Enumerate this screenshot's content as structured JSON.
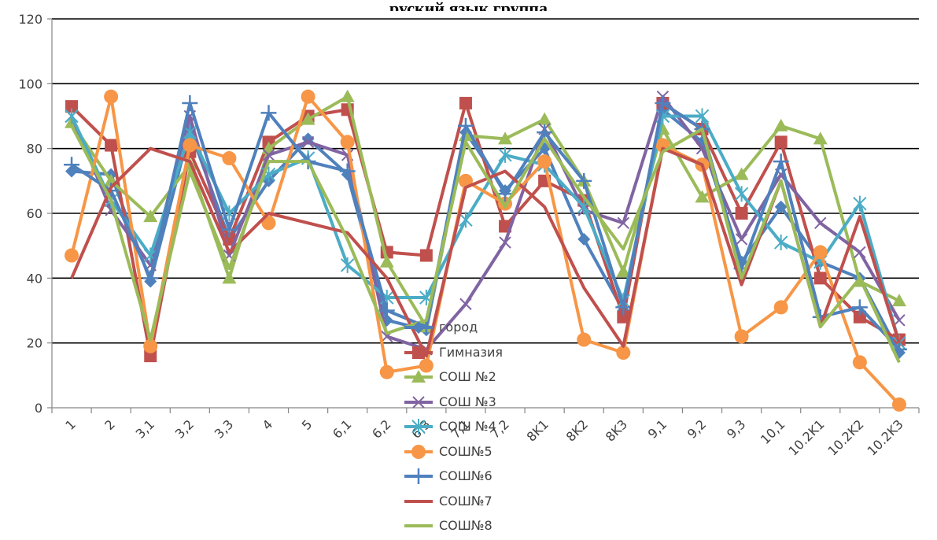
{
  "chart_data": {
    "type": "line",
    "title": "руский язык группа",
    "xlabel": "",
    "ylabel": "",
    "ylim": [
      0,
      120
    ],
    "yticks": [
      0,
      20,
      40,
      60,
      80,
      100,
      120
    ],
    "grid": "horizontal",
    "legend_position": "bottom-center",
    "categories": [
      "1",
      "2",
      "3,1",
      "3,2",
      "3,3",
      "4",
      "5",
      "6,1",
      "6,2",
      "6,3",
      "7,1",
      "7,2",
      "8K1",
      "8K2",
      "8K3",
      "9,1",
      "9,2",
      "9,3",
      "10,1",
      "10.2K1",
      "10.2K2",
      "10.2K3"
    ],
    "series": [
      {
        "name": "город",
        "color": "#4f81bd",
        "marker": "diamond",
        "values": [
          73,
          72,
          39,
          86,
          52,
          70,
          83,
          72,
          27,
          24,
          85,
          67,
          80,
          52,
          30,
          92,
          82,
          45,
          62,
          45,
          40,
          17
        ]
      },
      {
        "name": "Гимназия",
        "color": "#c0504d",
        "marker": "square",
        "values": [
          93,
          81,
          16,
          79,
          52,
          82,
          90,
          92,
          48,
          47,
          94,
          56,
          70,
          64,
          28,
          94,
          86,
          60,
          82,
          40,
          28,
          21
        ]
      },
      {
        "name": "СОШ №2",
        "color": "#9bbb59",
        "marker": "triangle",
        "values": [
          88,
          70,
          59,
          75,
          40,
          80,
          89,
          96,
          45,
          25,
          84,
          83,
          89,
          70,
          42,
          86,
          65,
          72,
          87,
          83,
          39,
          33
        ]
      },
      {
        "name": "СОШ №3",
        "color": "#8064a2",
        "marker": "x",
        "values": [
          90,
          61,
          44,
          90,
          47,
          78,
          82,
          78,
          22,
          18,
          32,
          51,
          86,
          61,
          57,
          96,
          80,
          52,
          72,
          57,
          48,
          27
        ]
      },
      {
        "name": "СОШ №4",
        "color": "#4bacc6",
        "marker": "star",
        "values": [
          90,
          64,
          47,
          85,
          60,
          72,
          77,
          44,
          34,
          34,
          58,
          78,
          75,
          62,
          33,
          90,
          90,
          66,
          51,
          45,
          63,
          20
        ]
      },
      {
        "name": "СОШ№5",
        "color": "#f79646",
        "marker": "circle",
        "values": [
          47,
          96,
          19,
          81,
          77,
          57,
          96,
          82,
          11,
          13,
          70,
          63,
          76,
          21,
          17,
          81,
          75,
          22,
          31,
          48,
          14,
          1
        ]
      },
      {
        "name": "СОШ№6",
        "color": "#4f81bd",
        "marker": "plus",
        "values": [
          75,
          67,
          40,
          94,
          55,
          91,
          76,
          73,
          30,
          25,
          87,
          66,
          85,
          70,
          31,
          94,
          86,
          43,
          76,
          28,
          31,
          18
        ]
      },
      {
        "name": "СОШ№7",
        "color": "#c0504d",
        "marker": "none",
        "values": [
          40,
          68,
          80,
          76,
          48,
          60,
          57,
          54,
          40,
          16,
          68,
          73,
          62,
          37,
          19,
          80,
          75,
          38,
          70,
          25,
          59,
          20
        ]
      },
      {
        "name": "СОШ№8",
        "color": "#9bbb59",
        "marker": "none",
        "values": [
          87,
          64,
          21,
          73,
          43,
          76,
          76,
          52,
          23,
          27,
          82,
          62,
          83,
          65,
          49,
          79,
          86,
          40,
          70,
          25,
          40,
          14
        ]
      }
    ]
  }
}
